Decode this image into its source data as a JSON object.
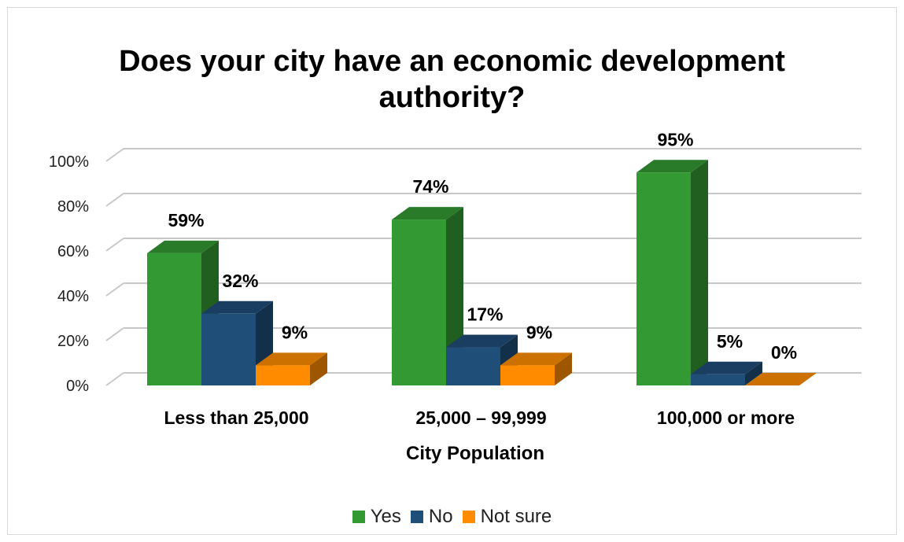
{
  "chart_data": {
    "type": "bar",
    "title": "Does your city have an economic development authority?",
    "title_lines": [
      "Does your city have an economic development",
      "authority?"
    ],
    "xlabel": "City Population",
    "ylabel": "",
    "categories": [
      "Less than 25,000",
      "25,000 – 99,999",
      "100,000 or more"
    ],
    "series": [
      {
        "name": "Yes",
        "values": [
          59,
          74,
          95
        ],
        "labels": [
          "59%",
          "74%",
          "95%"
        ],
        "color": "#339933"
      },
      {
        "name": "No",
        "values": [
          32,
          17,
          5
        ],
        "labels": [
          "32%",
          "17%",
          "5%"
        ],
        "color": "#1f4e79"
      },
      {
        "name": "Not sure",
        "values": [
          9,
          9,
          0
        ],
        "labels": [
          "9%",
          "9%",
          "0%"
        ],
        "color": "#ff8c00"
      }
    ],
    "ylim": [
      0,
      100
    ],
    "yticks": [
      "0%",
      "20%",
      "40%",
      "60%",
      "80%",
      "100%"
    ],
    "grid": true,
    "style": "3d-clustered-column",
    "legend_position": "bottom"
  }
}
